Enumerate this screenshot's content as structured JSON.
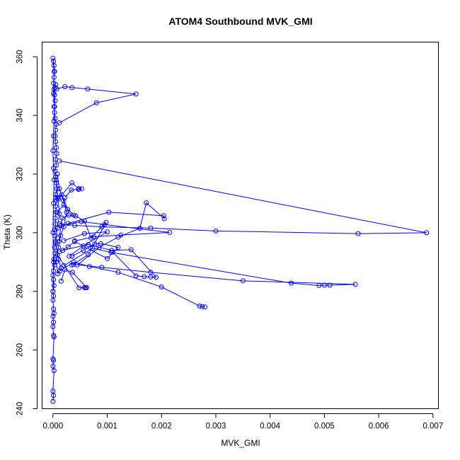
{
  "chart_data": {
    "type": "line",
    "title": "ATOM4 Southbound MVK_GMI",
    "xlabel": "MVK_GMI",
    "ylabel": "Theta (K)",
    "xlim": [
      -0.0002,
      0.0071
    ],
    "ylim": [
      240,
      365
    ],
    "x_ticks": [
      {
        "value": 0.0,
        "label": "0.000"
      },
      {
        "value": 0.001,
        "label": "0.001"
      },
      {
        "value": 0.002,
        "label": "0.002"
      },
      {
        "value": 0.003,
        "label": "0.003"
      },
      {
        "value": 0.004,
        "label": "0.004"
      },
      {
        "value": 0.005,
        "label": "0.005"
      },
      {
        "value": 0.006,
        "label": "0.006"
      },
      {
        "value": 0.007,
        "label": "0.007"
      }
    ],
    "y_ticks": [
      {
        "value": 240,
        "label": "240"
      },
      {
        "value": 260,
        "label": "260"
      },
      {
        "value": 280,
        "label": "280"
      },
      {
        "value": 300,
        "label": "300"
      },
      {
        "value": 320,
        "label": "320"
      },
      {
        "value": 340,
        "label": "340"
      },
      {
        "value": 360,
        "label": "360"
      }
    ],
    "grid": false,
    "color": "#0000ff",
    "series": [
      {
        "x": [
          0.0,
          1e-05,
          0.0,
          2e-05,
          0.0,
          1e-05,
          0.0,
          2e-05,
          1e-05,
          0.0,
          1e-05,
          0.0,
          2e-05,
          1e-05,
          0.0,
          1e-05,
          0.0,
          2e-05,
          1e-05,
          0.0,
          1e-05,
          3e-05,
          2e-05,
          4e-05,
          3e-05,
          5e-05,
          4e-05,
          3e-05,
          5e-05,
          4e-05,
          6e-05,
          5e-05,
          6e-05,
          5e-05,
          7e-05,
          6e-05,
          5e-05,
          4e-05,
          6e-05,
          5e-05,
          7e-05,
          6e-05,
          5e-05,
          4e-05,
          5e-05,
          6e-05,
          4e-05,
          3e-05,
          2e-05,
          4e-05,
          3e-05,
          2e-05,
          1e-05,
          2e-05,
          3e-05,
          2e-05,
          1e-05,
          0.0,
          2e-05,
          1e-05,
          3e-05,
          2e-05,
          1e-05,
          0.0,
          1e-05,
          2e-05,
          1e-05,
          0.0,
          1e-05,
          0.0
        ],
        "y": [
          242.5,
          244.5,
          246.0,
          253.0,
          254.5,
          256.5,
          257.0,
          264.5,
          265.0,
          268.0,
          269.5,
          271.5,
          272.5,
          274.0,
          277.0,
          278.5,
          280.0,
          282.0,
          284.0,
          285.5,
          287.0,
          289.0,
          291.0,
          293.0,
          295.0,
          297.0,
          299.0,
          301.0,
          303.0,
          305.0,
          307.0,
          309.0,
          311.0,
          313.0,
          315.0,
          317.0,
          319.0,
          321.0,
          323.0,
          325.0,
          327.0,
          329.0,
          331.0,
          333.0,
          335.0,
          337.0,
          339.0,
          341.0,
          343.0,
          345.0,
          347.0,
          349.0,
          351.0,
          353.0,
          355.0,
          357.0,
          358.5,
          359.5,
          355.0,
          347.5,
          343.0,
          338.0,
          333.0,
          328.0,
          322.0,
          318.0,
          310.0,
          300.0,
          290.0,
          280.0
        ]
      },
      {
        "x": [
          6e-05,
          9e-05,
          0.00012,
          8e-05,
          5e-05,
          0.0001,
          0.00015,
          9e-05,
          6e-05,
          0.0001,
          0.00014,
          0.0002,
          0.00025,
          0.00019,
          0.00012,
          8e-05
        ],
        "y": [
          318.0,
          312.0,
          306.5,
          301.5,
          296.5,
          291.0,
          288.0,
          286.0,
          290.0,
          295.0,
          299.0,
          302.0,
          307.0,
          311.0,
          315.0,
          320.0
        ]
      },
      {
        "x": [
          7e-05,
          0.00022,
          0.00035,
          0.00064,
          0.00153,
          0.0008,
          0.00012
        ],
        "y": [
          349.0,
          349.8,
          349.5,
          349.0,
          347.3,
          344.3,
          337.5
        ]
      },
      {
        "x": [
          4e-05,
          5e-05
        ],
        "y": [
          349.5,
          350.5
        ]
      },
      {
        "x": [
          0.00012,
          0.00688,
          0.00562,
          0.003,
          0.0018,
          0.0009,
          0.0004,
          0.00012
        ],
        "y": [
          324.5,
          300.0,
          299.7,
          300.6,
          301.6,
          302.0,
          302.5,
          303.0
        ]
      },
      {
        "x": [
          0.0001,
          0.00035,
          0.00048,
          0.00053,
          0.00047,
          0.00034,
          0.00022
        ],
        "y": [
          311.5,
          317.0,
          315.0,
          315.0,
          314.8,
          314.6,
          312.0
        ]
      },
      {
        "x": [
          0.00028,
          0.00103,
          0.00204,
          0.00205,
          0.00172,
          0.0016,
          0.0012,
          0.00085,
          0.00045
        ],
        "y": [
          303.2,
          307.0,
          305.8,
          304.8,
          310.2,
          301.5,
          298.5,
          295.0,
          289.0
        ]
      },
      {
        "x": [
          0.00015,
          0.00052,
          0.00095,
          0.00215,
          0.00125,
          0.00075,
          0.0004
        ],
        "y": [
          302.5,
          303.8,
          302.8,
          300.1,
          299.2,
          298.6,
          297.2
        ]
      },
      {
        "x": [
          0.0002,
          0.00058,
          0.001,
          0.00056,
          0.0003
        ],
        "y": [
          297.3,
          299.7,
          300.3,
          295.5,
          292.0
        ]
      },
      {
        "x": [
          0.00012,
          0.00028,
          0.0004,
          0.001,
          0.0012,
          0.00088,
          0.00077,
          0.00056,
          0.00035
        ],
        "y": [
          293.5,
          295.2,
          297.0,
          291.2,
          295.0,
          296.3,
          296.2,
          294.0,
          292.0
        ]
      },
      {
        "x": [
          0.00018,
          0.00065,
          0.00108,
          0.00144,
          0.0019,
          0.0018,
          0.00168,
          0.00153,
          0.0011
        ],
        "y": [
          294.0,
          296.0,
          294.0,
          294.2,
          284.8,
          284.9,
          285.0,
          285.3,
          293.4
        ]
      },
      {
        "x": [
          0.0002,
          0.00073,
          0.00107,
          0.00439,
          0.0049,
          0.005,
          0.0051,
          0.00557,
          0.0035,
          0.0018,
          0.0009,
          0.00038
        ],
        "y": [
          288.8,
          294.7,
          293.3,
          282.8,
          282.0,
          282.1,
          282.1,
          282.4,
          283.6,
          286.5,
          288.2,
          289.2
        ]
      },
      {
        "x": [
          0.00013,
          0.00038,
          0.00067,
          0.0012,
          0.002,
          0.0027,
          0.00275,
          0.0028
        ],
        "y": [
          287.0,
          290.0,
          288.5,
          286.5,
          281.5,
          275.0,
          274.8,
          274.7
        ]
      },
      {
        "x": [
          8e-05,
          0.00048,
          0.00058,
          0.0006,
          0.00062,
          0.00036,
          0.00022,
          0.00015
        ],
        "y": [
          292.5,
          281.2,
          281.3,
          281.3,
          281.3,
          286.5,
          287.4,
          283.5
        ]
      },
      {
        "x": [
          0.00011,
          0.00017,
          0.00029,
          0.00042,
          0.00058,
          0.0007,
          0.00098,
          0.00065,
          0.00035
        ],
        "y": [
          297.0,
          305.0,
          306.0,
          305.7,
          304.0,
          298.2,
          303.5,
          292.5,
          289.0
        ]
      },
      {
        "x": [
          5e-05,
          0.00016,
          0.00027,
          0.00038,
          0.0002,
          8e-05
        ],
        "y": [
          312.0,
          313.0,
          308.0,
          306.0,
          309.5,
          307.0
        ]
      }
    ]
  }
}
